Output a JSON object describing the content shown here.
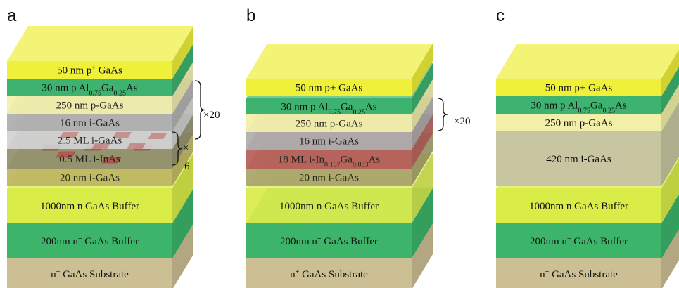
{
  "panels": [
    {
      "label": "a",
      "layers": [
        {
          "label": [
            "50 nm p",
            {
              "sup": "+"
            },
            "  GaAs"
          ],
          "color": "#eef03a"
        },
        {
          "label": [
            "30 nm p Al",
            {
              "sub": "0.75"
            },
            "Ga",
            {
              "sub": "0.25"
            },
            "As"
          ],
          "color": "#3db36f"
        },
        {
          "label": [
            "250 nm p-GaAs"
          ],
          "color": "#f2efa8"
        },
        {
          "label": [
            "16 nm i-GaAs"
          ],
          "color": "#acacac"
        },
        {
          "label": [
            "2.5 ML i-GaAs"
          ],
          "color": "#d2d2d2"
        },
        {
          "label": [
            "0.5 ML i-InAs"
          ],
          "color": "#8f8d6a"
        },
        {
          "label": [
            "20 nm i-GaAs"
          ],
          "color": "#bdb560"
        },
        {
          "label": [
            "1000nm n GaAs Buffer"
          ],
          "color": "#d9ec48"
        },
        {
          "label": [
            "200nm n",
            {
              "sup": "+"
            },
            " GaAs Buffer"
          ],
          "color": "#3cb56a"
        },
        {
          "label": [
            "n",
            {
              "sup": "+"
            },
            " GaAs Substrate"
          ],
          "color": "#cbbf93"
        }
      ],
      "annotations": [
        "×20",
        "×",
        "6"
      ]
    },
    {
      "label": "b",
      "layers": [
        {
          "label": [
            "50 nm p+  GaAs"
          ],
          "color": "#eef03a"
        },
        {
          "label": [
            "30 nm p Al",
            {
              "sub": "0.75"
            },
            "Ga",
            {
              "sub": "0.25"
            },
            "As"
          ],
          "color": "#3db36f"
        },
        {
          "label": [
            "250 nm p-GaAs"
          ],
          "color": "#f2efa8"
        },
        {
          "label": [
            "16 nm i-GaAs"
          ],
          "color": "#acacac"
        },
        {
          "label": [
            "18 ML i-In",
            {
              "sub": "0.167"
            },
            "Ga",
            {
              "sub": "0.833"
            },
            "As"
          ],
          "color": "#b55a55"
        },
        {
          "label": [
            "20 nm i-GaAs"
          ],
          "color": "#a7a16a"
        },
        {
          "label": [
            "1000nm n GaAs Buffer"
          ],
          "color": "#d9ec48"
        },
        {
          "label": [
            "200nm n",
            {
              "sup": "+"
            },
            " GaAs Buffer"
          ],
          "color": "#3cb56a"
        },
        {
          "label": [
            "n",
            {
              "sup": "+"
            },
            " GaAs Substrate"
          ],
          "color": "#cbbf93"
        }
      ],
      "annotations": [
        "×20"
      ]
    },
    {
      "label": "c",
      "layers": [
        {
          "label": [
            "50 nm p+  GaAs"
          ],
          "color": "#eef03a"
        },
        {
          "label": [
            "30 nm p Al",
            {
              "sub": "0.75"
            },
            "Ga",
            {
              "sub": "0.25"
            },
            "As"
          ],
          "color": "#3db36f"
        },
        {
          "label": [
            "250 nm p-GaAs"
          ],
          "color": "#f2efa8"
        },
        {
          "label": [
            "420 nm i-GaAs"
          ],
          "color": "#c8c6a0"
        },
        {
          "label": [
            "1000nm n GaAs Buffer"
          ],
          "color": "#d9ec48"
        },
        {
          "label": [
            "200nm n",
            {
              "sup": "+"
            },
            " GaAs Buffer"
          ],
          "color": "#3cb56a"
        },
        {
          "label": [
            "n",
            {
              "sup": "+"
            },
            " GaAs Substrate"
          ],
          "color": "#cbbf93"
        }
      ],
      "annotations": []
    }
  ]
}
